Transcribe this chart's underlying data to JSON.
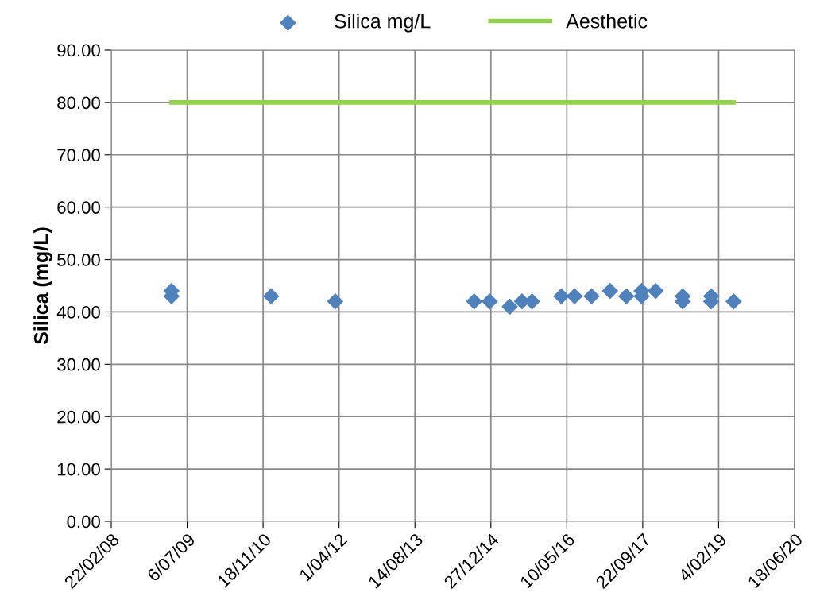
{
  "chart_data": {
    "type": "scatter",
    "ylabel": "Silica (mg/L)",
    "legend": "top",
    "grid": true,
    "series": [
      {
        "name": "Silica mg/L",
        "marker": "diamond",
        "color": "#4f81bd",
        "x": [
          "2009-03-25",
          "2009-03-25",
          "2011-01-10",
          "2012-03-07",
          "2014-09-08",
          "2014-12-19",
          "2015-04-30",
          "2015-07-20",
          "2015-09-24",
          "2016-04-04",
          "2016-06-30",
          "2016-10-20",
          "2017-02-19",
          "2017-06-06",
          "2017-09-15",
          "2017-09-15",
          "2017-12-16",
          "2018-06-12",
          "2018-06-12",
          "2018-12-17",
          "2018-12-17",
          "2019-05-14"
        ],
        "values": [
          44,
          43,
          43,
          42,
          42,
          42,
          41,
          42,
          42,
          43,
          43,
          43,
          44,
          43,
          44,
          43,
          44,
          43,
          42,
          43,
          42,
          42
        ]
      },
      {
        "name": "Aesthetic",
        "type": "line",
        "marker": "none",
        "line_style": "solid",
        "color": "#92d050",
        "x": [
          "2009-03-25",
          "2019-05-14"
        ],
        "values": [
          80,
          80
        ]
      }
    ],
    "xlim": [
      "2008-02-22",
      "2020-06-18"
    ],
    "xticks": [
      {
        "value": "2008-02-22",
        "label": "22/02/08"
      },
      {
        "value": "2009-07-06",
        "label": "6/07/09"
      },
      {
        "value": "2010-11-18",
        "label": "18/11/10"
      },
      {
        "value": "2012-04-01",
        "label": "1/04/12"
      },
      {
        "value": "2013-08-14",
        "label": "14/08/13"
      },
      {
        "value": "2014-12-27",
        "label": "27/12/14"
      },
      {
        "value": "2016-05-10",
        "label": "10/05/16"
      },
      {
        "value": "2017-09-22",
        "label": "22/09/17"
      },
      {
        "value": "2019-02-04",
        "label": "4/02/19"
      },
      {
        "value": "2020-06-18",
        "label": "18/06/20"
      }
    ],
    "ylim": [
      0,
      90
    ],
    "yticks": [
      {
        "value": 0,
        "label": "0.00"
      },
      {
        "value": 10,
        "label": "10.00"
      },
      {
        "value": 20,
        "label": "20.00"
      },
      {
        "value": 30,
        "label": "30.00"
      },
      {
        "value": 40,
        "label": "40.00"
      },
      {
        "value": 50,
        "label": "50.00"
      },
      {
        "value": 60,
        "label": "60.00"
      },
      {
        "value": 70,
        "label": "70.00"
      },
      {
        "value": 80,
        "label": "80.00"
      },
      {
        "value": 90,
        "label": "90.00"
      }
    ]
  }
}
